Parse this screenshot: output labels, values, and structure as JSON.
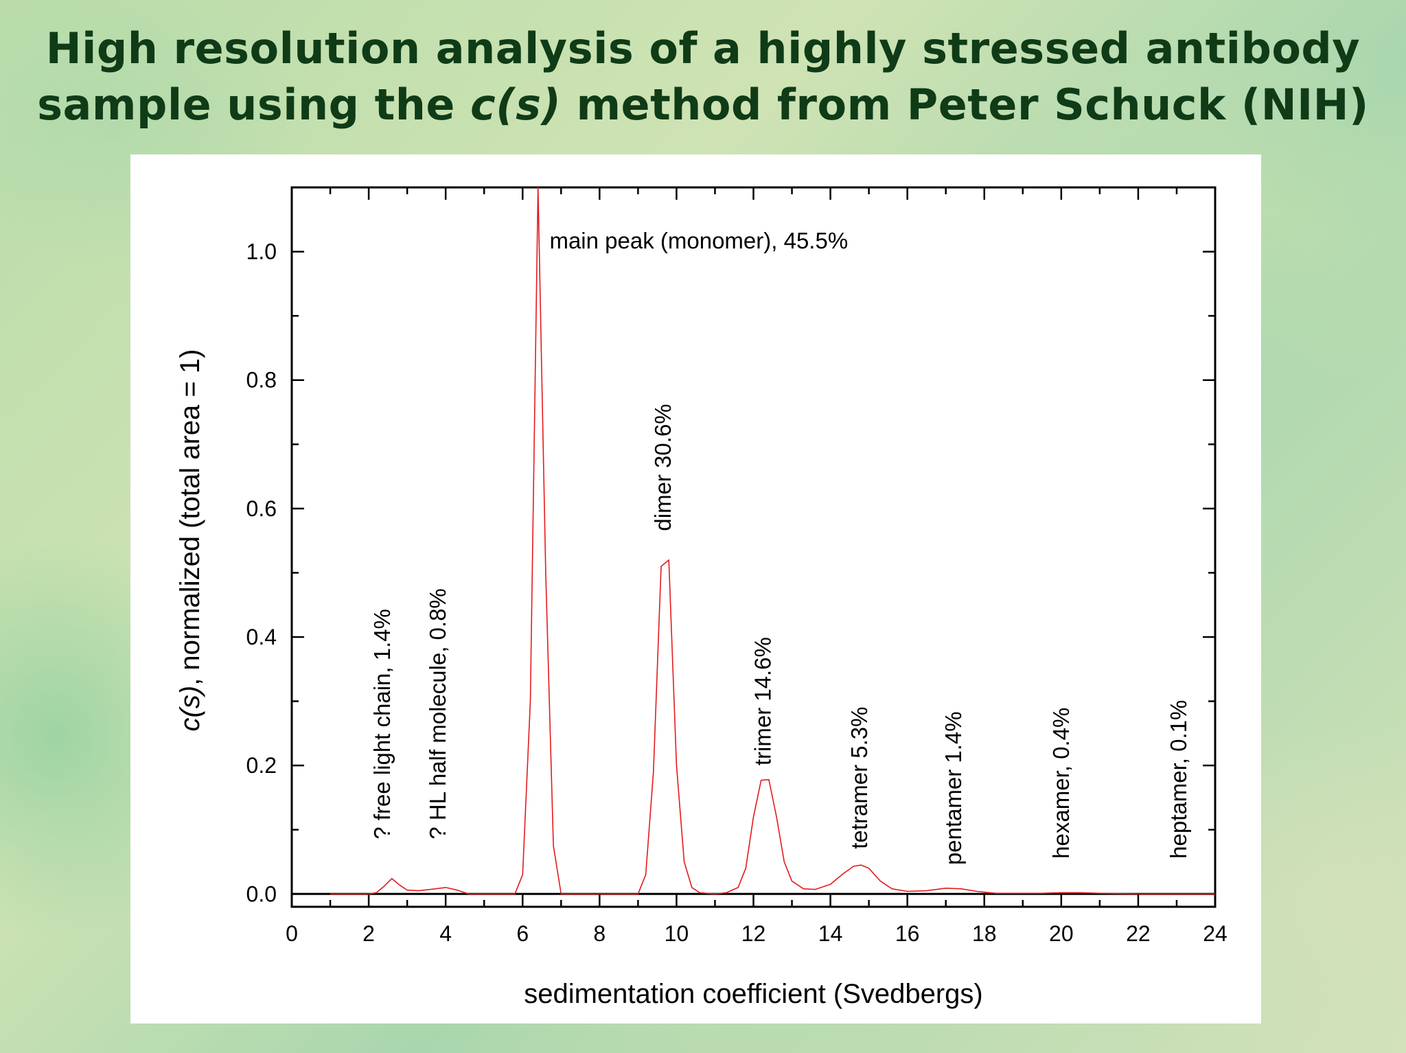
{
  "title": {
    "line1": "High resolution analysis of a highly stressed antibody",
    "line2_pre": "sample using the ",
    "line2_italic": "c(s)",
    "line2_post": " method from Peter Schuck (NIH)"
  },
  "colors": {
    "title": "#0f3b17",
    "series": "#e31a1c",
    "axis": "#000000"
  },
  "chart_data": {
    "type": "line",
    "xlabel": "sedimentation coefficient (Svedbergs)",
    "ylabel_italic": "c(s)",
    "ylabel_rest": ", normalized (total area = 1)",
    "xlim": [
      0,
      24
    ],
    "ylim": [
      -0.02,
      1.1
    ],
    "xticks": [
      0,
      2,
      4,
      6,
      8,
      10,
      12,
      14,
      16,
      18,
      20,
      22,
      24
    ],
    "yticks": [
      0.0,
      0.2,
      0.4,
      0.6,
      0.8,
      1.0
    ],
    "xtick_labels": [
      "0",
      "2",
      "4",
      "6",
      "8",
      "10",
      "12",
      "14",
      "16",
      "18",
      "20",
      "22",
      "24"
    ],
    "ytick_labels": [
      "0.0",
      "0.2",
      "0.4",
      "0.6",
      "0.8",
      "1.0"
    ],
    "baseline": 0,
    "x": [
      1.0,
      1.5,
      2.0,
      2.2,
      2.4,
      2.6,
      2.8,
      3.0,
      3.3,
      3.6,
      4.0,
      4.3,
      4.6,
      5.0,
      5.5,
      5.8,
      6.0,
      6.2,
      6.4,
      6.6,
      6.8,
      7.0,
      7.5,
      8.0,
      8.5,
      9.0,
      9.2,
      9.4,
      9.6,
      9.8,
      10.0,
      10.2,
      10.4,
      10.6,
      11.0,
      11.3,
      11.6,
      11.8,
      12.0,
      12.2,
      12.4,
      12.6,
      12.8,
      13.0,
      13.3,
      13.6,
      14.0,
      14.3,
      14.6,
      14.8,
      15.0,
      15.3,
      15.6,
      16.0,
      16.5,
      17.0,
      17.4,
      17.8,
      18.3,
      18.8,
      19.5,
      20.0,
      20.5,
      21.0,
      22.0,
      23.0,
      24.0
    ],
    "y": [
      0.0,
      0.0,
      0.0,
      0.002,
      0.012,
      0.024,
      0.014,
      0.006,
      0.005,
      0.007,
      0.01,
      0.006,
      0.0,
      0.0,
      0.0,
      0.0,
      0.03,
      0.3,
      1.1,
      0.5,
      0.075,
      0.0,
      0.0,
      0.0,
      0.0,
      0.0,
      0.03,
      0.19,
      0.51,
      0.52,
      0.2,
      0.05,
      0.01,
      0.002,
      0.0,
      0.002,
      0.01,
      0.04,
      0.12,
      0.177,
      0.178,
      0.12,
      0.05,
      0.02,
      0.008,
      0.007,
      0.015,
      0.03,
      0.043,
      0.045,
      0.04,
      0.02,
      0.008,
      0.004,
      0.005,
      0.009,
      0.008,
      0.004,
      0.001,
      0.001,
      0.001,
      0.002,
      0.002,
      0.001,
      0.0,
      0.0,
      0.0
    ],
    "annotations": [
      {
        "text": "main peak (monomer), 45.5%",
        "x": 6.7,
        "y": 1.005,
        "rotate": false
      },
      {
        "text": "? free light chain, 1.4%",
        "x": 2.55,
        "y": 0.085,
        "rotate": true
      },
      {
        "text": "? HL half molecule, 0.8%",
        "x": 4.0,
        "y": 0.085,
        "rotate": true
      },
      {
        "text": "dimer 30.6%",
        "x": 9.85,
        "y": 0.565,
        "rotate": true
      },
      {
        "text": "trimer 14.6%",
        "x": 12.45,
        "y": 0.2,
        "rotate": true
      },
      {
        "text": "tetramer 5.3%",
        "x": 14.95,
        "y": 0.07,
        "rotate": true
      },
      {
        "text": "pentamer 1.4%",
        "x": 17.4,
        "y": 0.045,
        "rotate": true
      },
      {
        "text": "hexamer, 0.4%",
        "x": 20.2,
        "y": 0.055,
        "rotate": true
      },
      {
        "text": "heptamer, 0.1%",
        "x": 23.25,
        "y": 0.055,
        "rotate": true
      }
    ]
  }
}
